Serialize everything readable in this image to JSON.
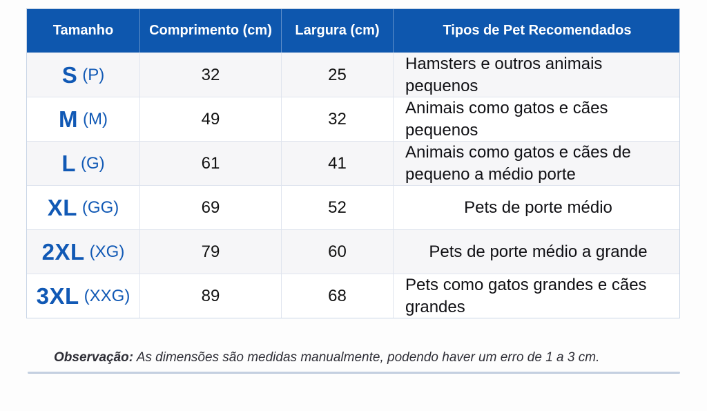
{
  "table": {
    "headers": [
      "Tamanho",
      "Comprimento (cm)",
      "Largura (cm)",
      "Tipos de Pet Recomendados"
    ],
    "rows": [
      {
        "size": "S",
        "size_alt": "(P)",
        "length": "32",
        "width": "25",
        "pets": "Hamsters e outros animais pequenos"
      },
      {
        "size": "M",
        "size_alt": "(M)",
        "length": "49",
        "width": "32",
        "pets": "Animais como gatos e cães pequenos"
      },
      {
        "size": "L",
        "size_alt": "(G)",
        "length": "61",
        "width": "41",
        "pets": "Animais como gatos e cães de pequeno a médio porte"
      },
      {
        "size": "XL",
        "size_alt": "(GG)",
        "length": "69",
        "width": "52",
        "pets": "Pets de porte médio"
      },
      {
        "size": "2XL",
        "size_alt": "(XG)",
        "length": "79",
        "width": "60",
        "pets": "Pets de porte médio a grande"
      },
      {
        "size": "3XL",
        "size_alt": "(XXG)",
        "length": "89",
        "width": "68",
        "pets": "Pets como gatos grandes e cães grandes"
      }
    ]
  },
  "note": {
    "label": "Observação:",
    "text": " As dimensões são medidas manualmente, podendo haver um erro de 1 a 3 cm."
  },
  "colors": {
    "header-bg": "#0e57ae",
    "size-blue": "#1159b5",
    "row-alt": "#f6f6f8",
    "divider": "#b7c5d9"
  }
}
